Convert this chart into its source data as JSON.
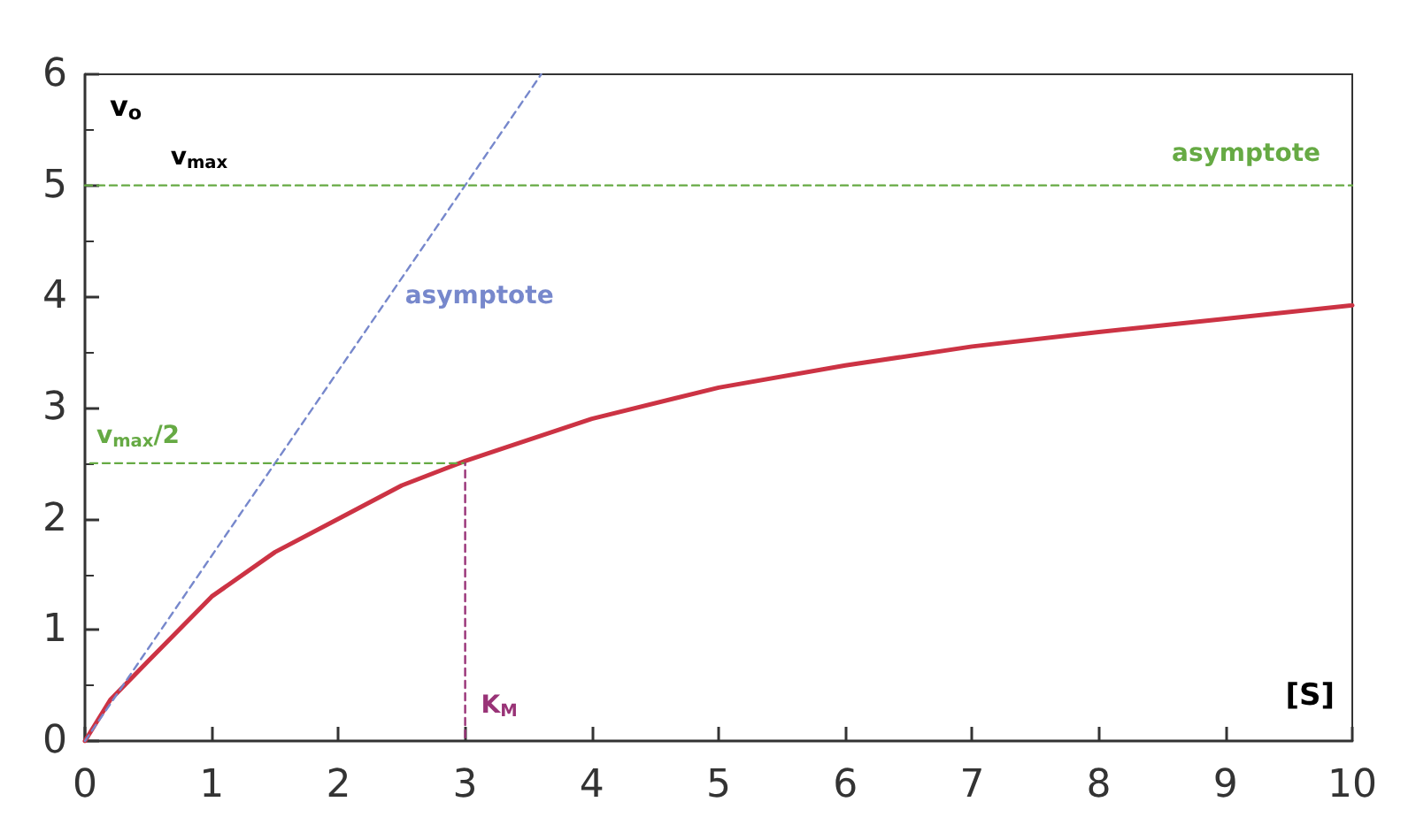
{
  "chart_data": {
    "type": "line",
    "xlabel": "[S]",
    "ylabel": "v$_{o}$",
    "xlim": [
      0,
      10
    ],
    "xticks": [
      0,
      1,
      2,
      3,
      4,
      5,
      6,
      7,
      8,
      9,
      10
    ],
    "ylim": [
      0,
      6
    ],
    "yticks": [
      0,
      1,
      2,
      3,
      4,
      5,
      6
    ],
    "grid": false,
    "legend": false,
    "marker": "none",
    "series": [
      {
        "color": "#cc3344",
        "line_style": "solid",
        "x": [
          0,
          0.2,
          0.5,
          1,
          1.5,
          2,
          2.5,
          3,
          4,
          5,
          6,
          7,
          8,
          9,
          10
        ],
        "values": [
          0,
          0.37,
          0.72,
          1.3,
          1.7,
          2.0,
          2.3,
          2.52,
          2.9,
          3.18,
          3.38,
          3.55,
          3.68,
          3.8,
          3.92
        ]
      },
      {
        "name": "asymptote",
        "color": "#7788cc",
        "line_style": "dashed",
        "x": [
          0,
          2.4,
          3.6
        ],
        "values": [
          0,
          4,
          6
        ]
      },
      {
        "name": "asymptote",
        "color": "#66aa44",
        "line_style": "dashed",
        "x": [
          0,
          10
        ],
        "values": [
          5,
          5
        ]
      },
      {
        "name": "v$_{max}$/2",
        "color": "#66aa44",
        "line_style": "dashed",
        "x": [
          0,
          3
        ],
        "values": [
          2.5,
          2.5
        ]
      },
      {
        "name": "K$_{M}$",
        "color": "#993377",
        "line_style": "dashed",
        "x": [
          3,
          3
        ],
        "values": [
          0,
          2.5
        ]
      }
    ],
    "annotations": [
      {
        "text": "v$_{max}$",
        "x": 0.9,
        "y": 5
      }
    ]
  }
}
